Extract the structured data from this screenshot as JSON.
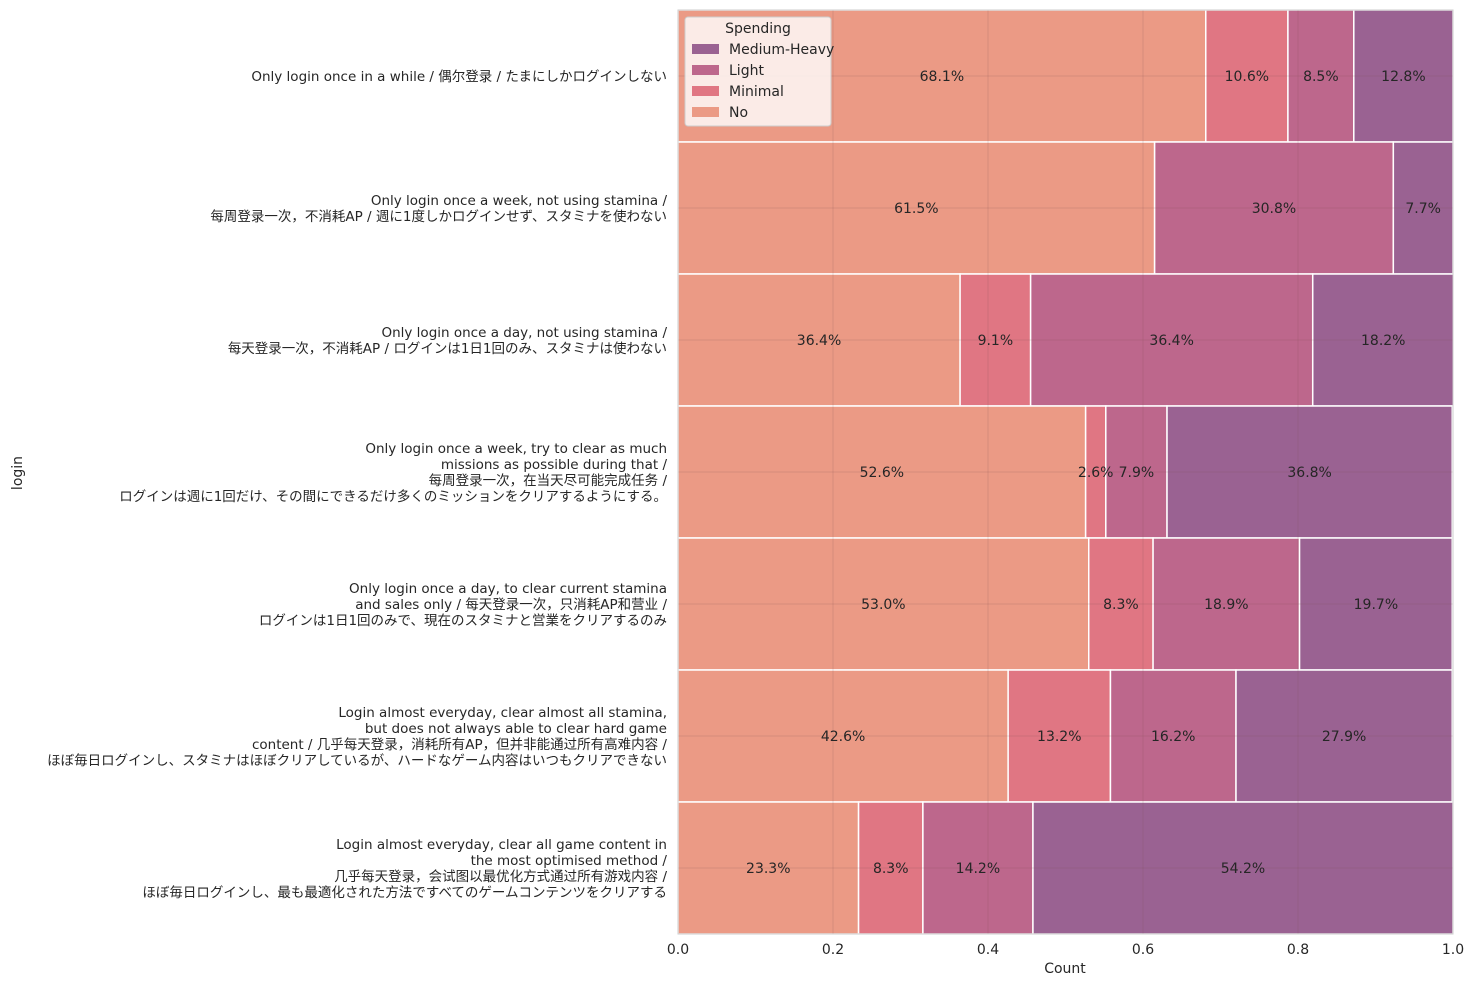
{
  "chart_data": {
    "type": "bar",
    "orientation": "horizontal",
    "stacked": "normalized",
    "title": "",
    "xlabel": "Count",
    "ylabel": "login",
    "xlim": [
      0,
      1
    ],
    "x_ticks": [
      "0.0",
      "0.2",
      "0.4",
      "0.6",
      "0.8",
      "1.0"
    ],
    "grid": true,
    "legend": {
      "title": "Spending",
      "placement": "top-left",
      "entries": [
        "Medium-Heavy",
        "Light",
        "Minimal",
        "No"
      ]
    },
    "categories": [
      [
        "Only login once in a while / 偶尔登录 / たまにしかログインしない"
      ],
      [
        "Only login once a week, not using stamina /",
        "每周登录一次，不消耗AP / 週に1度しかログインせず、スタミナを使わない"
      ],
      [
        "Only login once a day, not using stamina /",
        "每天登录一次，不消耗AP / ログインは1日1回のみ、スタミナは使わない"
      ],
      [
        "Only login once a week, try to clear as much",
        "missions as possible during that /",
        "每周登录一次，在当天尽可能完成任务 /",
        "ログインは週に1回だけ、その間にできるだけ多くのミッションをクリアするようにする。"
      ],
      [
        "Only login once a day, to clear current stamina",
        "and sales only / 每天登录一次，只消耗AP和营业 /",
        "ログインは1日1回のみで、現在のスタミナと営業をクリアするのみ"
      ],
      [
        "Login almost everyday, clear almost all stamina,",
        "but does not always able to clear hard game",
        "content / 几乎每天登录，消耗所有AP，但并非能通过所有高难内容 /",
        "ほぼ毎日ログインし、スタミナはほぼクリアしているが、ハードなゲーム内容はいつもクリアできない"
      ],
      [
        "Login almost everyday, clear all game content in",
        "the most optimised method /",
        "几乎每天登录，会试图以最优化方式通过所有游戏内容 /",
        "ほぼ毎日ログインし、最も最適化された方法ですべてのゲームコンテンツをクリアする"
      ]
    ],
    "series": [
      {
        "name": "No",
        "color": "#eb9a85",
        "values": [
          0.681,
          0.615,
          0.364,
          0.526,
          0.53,
          0.426,
          0.233
        ],
        "labels": [
          "68.1%",
          "61.5%",
          "36.4%",
          "52.6%",
          "53.0%",
          "42.6%",
          "23.3%"
        ]
      },
      {
        "name": "Minimal",
        "color": "#e07683",
        "values": [
          0.106,
          0.0,
          0.091,
          0.026,
          0.083,
          0.132,
          0.083
        ],
        "labels": [
          "10.6%",
          "",
          "9.1%",
          "2.6%",
          "8.3%",
          "13.2%",
          "8.3%"
        ]
      },
      {
        "name": "Light",
        "color": "#bd678c",
        "values": [
          0.085,
          0.308,
          0.364,
          0.079,
          0.189,
          0.162,
          0.142
        ],
        "labels": [
          "8.5%",
          "30.8%",
          "36.4%",
          "7.9%",
          "18.9%",
          "16.2%",
          "14.2%"
        ]
      },
      {
        "name": "Medium-Heavy",
        "color": "#9a6292",
        "values": [
          0.128,
          0.077,
          0.182,
          0.368,
          0.197,
          0.279,
          0.542
        ],
        "labels": [
          "12.8%",
          "7.7%",
          "18.2%",
          "36.8%",
          "19.7%",
          "27.9%",
          "54.2%"
        ]
      }
    ]
  }
}
